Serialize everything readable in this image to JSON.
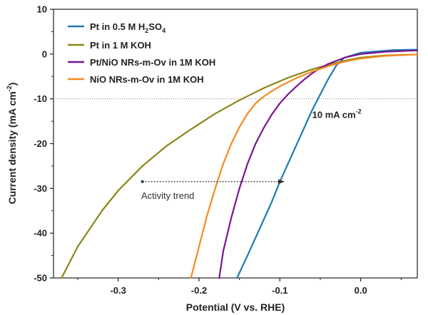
{
  "chart_data": {
    "type": "line",
    "title": "",
    "xlabel": "Potential (V vs. RHE)",
    "ylabel_base": "Current density (mA cm",
    "ylabel_sup": "-2",
    "ylabel_tail": ")",
    "xlim": [
      -0.38,
      0.07
    ],
    "ylim": [
      -50,
      10
    ],
    "x_ticks": [
      -0.3,
      -0.2,
      -0.1,
      0.0
    ],
    "x_tick_labels": [
      "-0.3",
      "-0.2",
      "-0.1",
      "0.0"
    ],
    "y_ticks": [
      10,
      0,
      -10,
      -20,
      -30,
      -40,
      -50
    ],
    "y_tick_labels": [
      "10",
      "0",
      "-10",
      "-20",
      "-30",
      "-40",
      "-50"
    ],
    "grid": false,
    "legend_position": "top-left",
    "reference_line": {
      "y": -10,
      "style": "dotted"
    },
    "series": [
      {
        "name": "Pt in 0.5 M H2SO4",
        "legend_parts": [
          "Pt in 0.5 M H",
          "2",
          "SO",
          "4"
        ],
        "color": "#1f7ab5",
        "x": [
          -0.153,
          -0.14,
          -0.125,
          -0.11,
          -0.1,
          -0.09,
          -0.08,
          -0.07,
          -0.06,
          -0.05,
          -0.04,
          -0.03,
          -0.02,
          0.0,
          0.02,
          0.04,
          0.07
        ],
        "y": [
          -50,
          -45,
          -39,
          -33,
          -28.5,
          -24.5,
          -20.5,
          -16.5,
          -12.5,
          -9,
          -5.5,
          -2.5,
          -0.8,
          0.3,
          0.6,
          0.9,
          1.0
        ]
      },
      {
        "name": "Pt in 1 M KOH",
        "color": "#8b8615",
        "x": [
          -0.37,
          -0.35,
          -0.32,
          -0.3,
          -0.27,
          -0.24,
          -0.21,
          -0.18,
          -0.15,
          -0.12,
          -0.09,
          -0.06,
          -0.04,
          -0.02,
          0.0,
          0.03,
          0.07
        ],
        "y": [
          -50,
          -43,
          -35,
          -30.5,
          -25,
          -20.5,
          -16.8,
          -13.3,
          -10.3,
          -7.6,
          -5.3,
          -3.4,
          -2.4,
          -1.5,
          -0.8,
          -0.3,
          -0.1
        ]
      },
      {
        "name": "Pt/NiO NRs-m-Ov in 1M KOH",
        "color": "#7b1593",
        "x": [
          -0.175,
          -0.17,
          -0.16,
          -0.15,
          -0.14,
          -0.13,
          -0.12,
          -0.11,
          -0.1,
          -0.09,
          -0.08,
          -0.07,
          -0.06,
          -0.05,
          -0.04,
          -0.03,
          -0.02,
          0.0,
          0.03,
          0.07
        ],
        "y": [
          -50,
          -44,
          -36.5,
          -30,
          -24.5,
          -20,
          -16.5,
          -13.5,
          -11,
          -9,
          -7.3,
          -5.7,
          -4.3,
          -3.1,
          -2.2,
          -1.5,
          -0.8,
          0.0,
          0.5,
          0.8
        ]
      },
      {
        "name": "NiO NRs-m-Ov in 1M KOH",
        "color": "#f58a1f",
        "x": [
          -0.21,
          -0.2,
          -0.19,
          -0.18,
          -0.17,
          -0.16,
          -0.15,
          -0.14,
          -0.13,
          -0.12,
          -0.11,
          -0.1,
          -0.08,
          -0.06,
          -0.04,
          -0.02,
          0.0,
          0.03,
          0.07
        ],
        "y": [
          -50,
          -43,
          -36,
          -30,
          -24.5,
          -20,
          -16.3,
          -13.3,
          -11,
          -9.5,
          -8.3,
          -7.2,
          -5.4,
          -3.9,
          -2.7,
          -1.7,
          -1.0,
          -0.4,
          -0.1
        ]
      }
    ],
    "annotations": [
      {
        "kind": "label",
        "text_base": "10 mA cm",
        "text_sup": "-2",
        "x": -0.06,
        "y": -13
      },
      {
        "kind": "arrow",
        "text": "Activity trend",
        "from": {
          "x": -0.27,
          "y": -28.5
        },
        "to": {
          "x": -0.095,
          "y": -28.5
        },
        "text_at": {
          "x": -0.275,
          "y": -31.5
        }
      }
    ]
  }
}
